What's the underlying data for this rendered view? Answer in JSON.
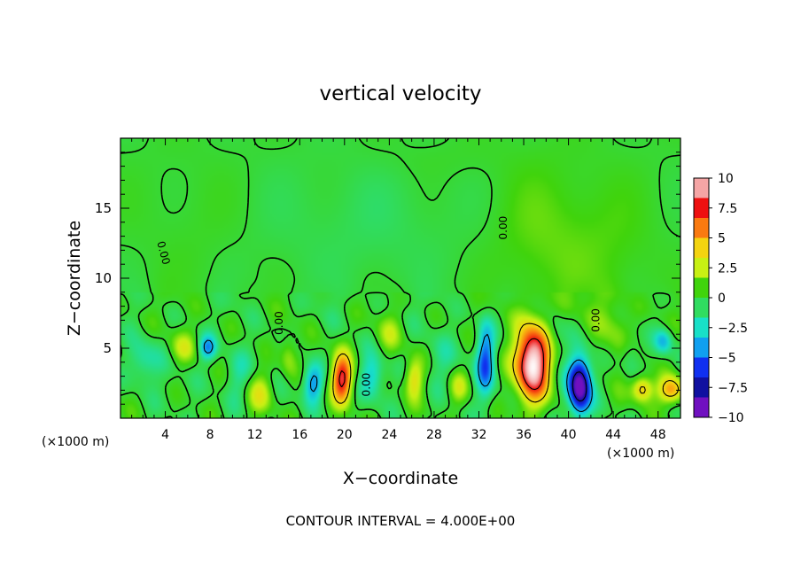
{
  "chart_data": {
    "type": "heatmap",
    "title": "vertical velocity",
    "xlabel": "X−coordinate",
    "ylabel": "Z−coordinate",
    "x_unit_left": "(×1000 m)",
    "x_unit_right": "(×1000 m)",
    "footer": "CONTOUR INTERVAL = 4.000E+00",
    "xlim": [
      0,
      50
    ],
    "ylim": [
      0,
      20
    ],
    "x_ticks": [
      4,
      8,
      12,
      16,
      20,
      24,
      28,
      32,
      36,
      40,
      44,
      48
    ],
    "x_tick_labels": [
      "4",
      "8",
      "12",
      "16",
      "20",
      "24",
      "28",
      "32",
      "36",
      "40",
      "44",
      "48"
    ],
    "y_ticks": [
      5,
      10,
      15
    ],
    "y_tick_labels": [
      "5",
      "10",
      "15"
    ],
    "contour_levels": [
      -8,
      -4,
      0,
      4,
      8
    ],
    "contour_label_values": [
      {
        "text": "0.00",
        "x": 3.8,
        "y": 11.8,
        "rotate": 75
      },
      {
        "text": "0.00",
        "x": 34.2,
        "y": 13.6,
        "rotate": -90
      },
      {
        "text": "0.00",
        "x": 14.2,
        "y": 6.8,
        "rotate": -90
      },
      {
        "text": "0.00",
        "x": 22.0,
        "y": 2.4,
        "rotate": -90
      },
      {
        "text": "0.00",
        "x": 42.5,
        "y": 7.0,
        "rotate": -90
      }
    ],
    "features": [
      {
        "kind": "updraft",
        "x": 36.8,
        "z": 4.0,
        "peak": 12.0
      },
      {
        "kind": "downdraft",
        "x": 41.0,
        "z": 2.5,
        "peak": -11.0
      },
      {
        "kind": "updraft",
        "x": 19.8,
        "z": 2.8,
        "peak": 8.5
      },
      {
        "kind": "updraft",
        "x": 49.0,
        "z": 2.0,
        "peak": 6.0
      },
      {
        "kind": "updraft",
        "x": 46.8,
        "z": 2.2,
        "peak": 5.0
      },
      {
        "kind": "downdraft",
        "x": 32.5,
        "z": 4.0,
        "peak": -5.5
      },
      {
        "kind": "downdraft",
        "x": 17.2,
        "z": 2.5,
        "peak": -5.0
      },
      {
        "kind": "downdraft",
        "x": 7.8,
        "z": 5.0,
        "peak": -4.5
      }
    ],
    "colorbar": {
      "min": -10,
      "max": 10,
      "labels": [
        "10",
        "7.5",
        "5",
        "2.5",
        "0",
        "−2.5",
        "−5",
        "−7.5",
        "−10"
      ],
      "colors": [
        "#f5a5a5",
        "#ee1010",
        "#fa7a10",
        "#f4d410",
        "#c8f014",
        "#40d40c",
        "#30dc60",
        "#18e0c8",
        "#10a0f0",
        "#1030f0",
        "#1010a0",
        "#7010c0"
      ]
    }
  }
}
